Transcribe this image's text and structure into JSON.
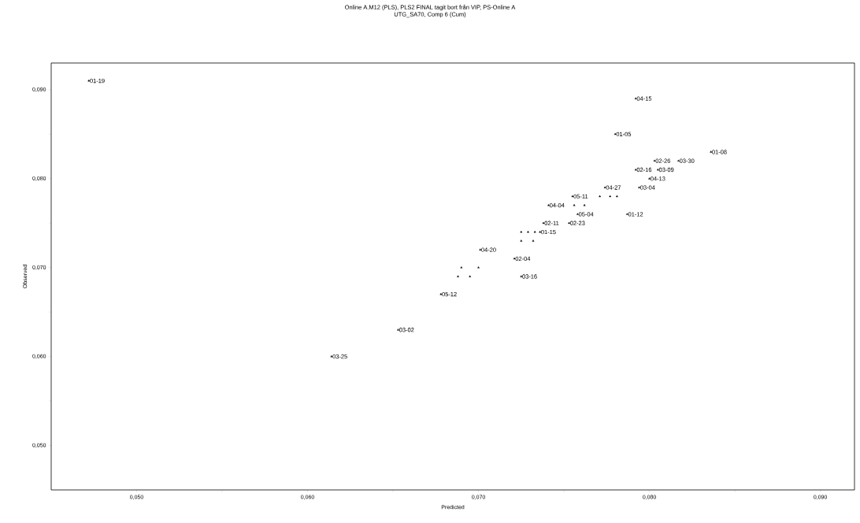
{
  "chart_data": {
    "type": "scatter",
    "title": "Online A.M12 (PLS), PLS2 FINAL tagit bort från VIP, PS-Online A",
    "subtitle": "UTG_SA70, Comp 6 (Cum)",
    "xlabel": "Predicted",
    "ylabel": "Observed",
    "xlim": [
      0.045,
      0.092
    ],
    "ylim": [
      0.045,
      0.093
    ],
    "xticks": [
      {
        "value": 0.05,
        "label": "0,050"
      },
      {
        "value": 0.055,
        "label": null
      },
      {
        "value": 0.06,
        "label": "0,060"
      },
      {
        "value": 0.065,
        "label": null
      },
      {
        "value": 0.07,
        "label": "0,070"
      },
      {
        "value": 0.075,
        "label": null
      },
      {
        "value": 0.08,
        "label": "0,080"
      },
      {
        "value": 0.085,
        "label": null
      },
      {
        "value": 0.09,
        "label": "0,090"
      }
    ],
    "yticks": [
      {
        "value": 0.05,
        "label": "0,050"
      },
      {
        "value": 0.055,
        "label": null
      },
      {
        "value": 0.06,
        "label": "0,060"
      },
      {
        "value": 0.065,
        "label": null
      },
      {
        "value": 0.07,
        "label": "0,070"
      },
      {
        "value": 0.075,
        "label": null
      },
      {
        "value": 0.08,
        "label": "0,080"
      },
      {
        "value": 0.085,
        "label": null
      },
      {
        "value": 0.09,
        "label": "0,090"
      }
    ],
    "marker": "triangle",
    "grid": false,
    "series": [
      {
        "color": "#000000",
        "x": [
          0.0472,
          0.0792,
          0.078,
          0.0836,
          0.0803,
          0.0817,
          0.0792,
          0.0805,
          0.08,
          0.0794,
          0.0774,
          0.0755,
          0.0771,
          0.0777,
          0.0781,
          0.0741,
          0.0756,
          0.0762,
          0.0758,
          0.0787,
          0.0738,
          0.0753,
          0.0725,
          0.0729,
          0.0733,
          0.0736,
          0.0725,
          0.0732,
          0.0701,
          0.0721,
          0.069,
          0.07,
          0.0688,
          0.0695,
          0.0725,
          0.0678,
          0.0653,
          0.0614
        ],
        "values": [
          0.091,
          0.089,
          0.085,
          0.083,
          0.082,
          0.082,
          0.081,
          0.081,
          0.08,
          0.079,
          0.079,
          0.078,
          0.078,
          0.078,
          0.078,
          0.077,
          0.077,
          0.077,
          0.076,
          0.076,
          0.075,
          0.075,
          0.074,
          0.074,
          0.074,
          0.074,
          0.073,
          0.073,
          0.072,
          0.071,
          0.07,
          0.07,
          0.069,
          0.069,
          0.069,
          0.067,
          0.063,
          0.06
        ]
      }
    ],
    "annotations": [
      {
        "text": "01-19",
        "x": 0.0472,
        "y": 0.091
      },
      {
        "text": "04-15",
        "x": 0.0792,
        "y": 0.089
      },
      {
        "text": "01-05",
        "x": 0.078,
        "y": 0.085
      },
      {
        "text": "01-08",
        "x": 0.0836,
        "y": 0.083
      },
      {
        "text": "02-26",
        "x": 0.0803,
        "y": 0.082
      },
      {
        "text": "03-30",
        "x": 0.0817,
        "y": 0.082
      },
      {
        "text": "02-16",
        "x": 0.0792,
        "y": 0.081
      },
      {
        "text": "03-09",
        "x": 0.0805,
        "y": 0.081
      },
      {
        "text": "04-13",
        "x": 0.08,
        "y": 0.08
      },
      {
        "text": "03-04",
        "x": 0.0794,
        "y": 0.079
      },
      {
        "text": "04-27",
        "x": 0.0774,
        "y": 0.079
      },
      {
        "text": "05-11",
        "x": 0.0755,
        "y": 0.078
      },
      {
        "text": "04-04",
        "x": 0.0741,
        "y": 0.077
      },
      {
        "text": "05-04",
        "x": 0.0758,
        "y": 0.076
      },
      {
        "text": "01-12",
        "x": 0.0787,
        "y": 0.076
      },
      {
        "text": "02-11",
        "x": 0.0738,
        "y": 0.075
      },
      {
        "text": "02-23",
        "x": 0.0753,
        "y": 0.075
      },
      {
        "text": "01-15",
        "x": 0.0736,
        "y": 0.074
      },
      {
        "text": "04-20",
        "x": 0.0701,
        "y": 0.072
      },
      {
        "text": "02-04",
        "x": 0.0721,
        "y": 0.071
      },
      {
        "text": "03-16",
        "x": 0.0725,
        "y": 0.069
      },
      {
        "text": "05-12",
        "x": 0.0678,
        "y": 0.067
      },
      {
        "text": "03-02",
        "x": 0.0653,
        "y": 0.063
      },
      {
        "text": "03-25",
        "x": 0.0614,
        "y": 0.06
      }
    ]
  }
}
